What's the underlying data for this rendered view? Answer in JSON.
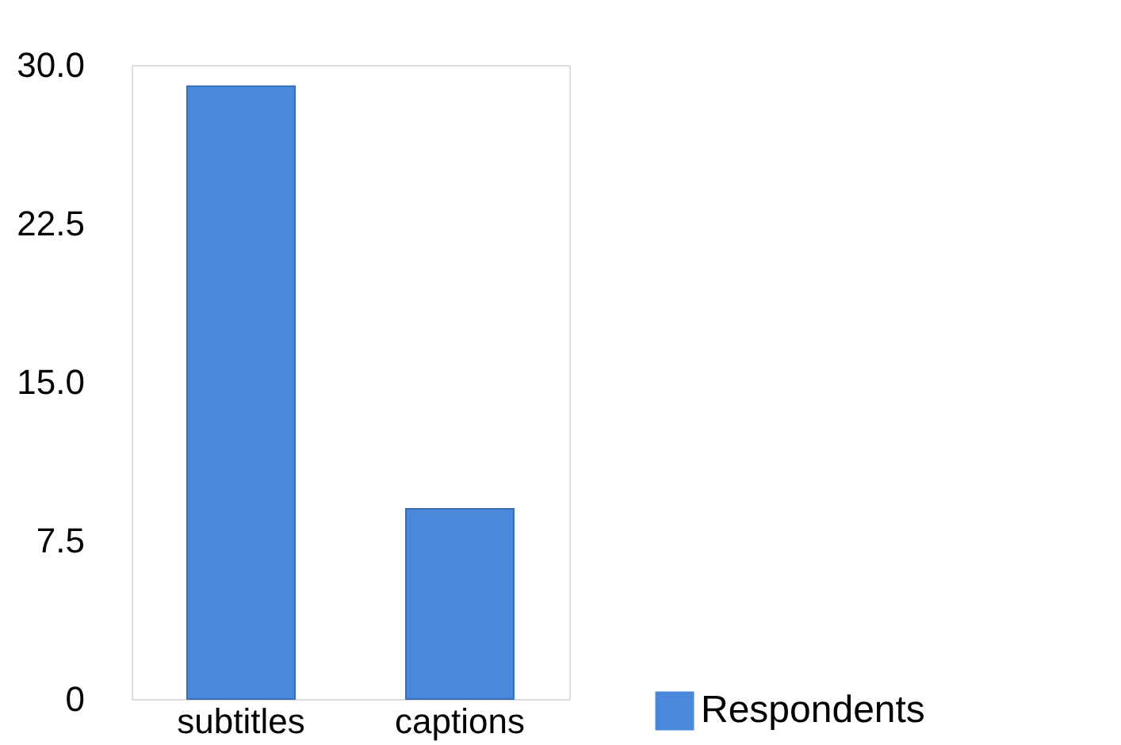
{
  "chart_data": {
    "type": "bar",
    "categories": [
      "subtitles",
      "captions"
    ],
    "series": [
      {
        "name": "Respondents",
        "color": "#4a88dc",
        "values": [
          29,
          9
        ]
      }
    ],
    "ylim": [
      0,
      30
    ],
    "yticks": [
      0,
      {
        "value": 7.5,
        "label": "7.5"
      },
      {
        "value": 15,
        "label": "15.0"
      },
      {
        "value": 22.5,
        "label": "22.5"
      },
      {
        "value": 30,
        "label": "30.0"
      }
    ],
    "grid": false,
    "legend": "bottom right"
  }
}
